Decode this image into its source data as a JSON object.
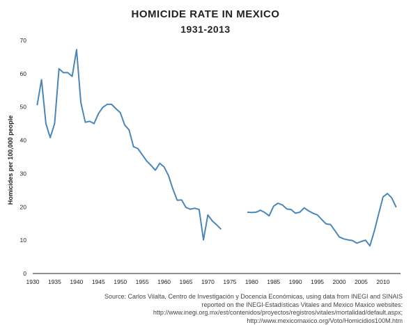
{
  "chart_data": {
    "type": "line",
    "title": "HOMICIDE RATE IN MEXICO",
    "subtitle": "1931-2013",
    "xlabel": "",
    "ylabel": "Homicides per 100,000 people",
    "xlim": [
      1930,
      2014
    ],
    "ylim": [
      0,
      70
    ],
    "x_ticks": [
      1930,
      1935,
      1940,
      1945,
      1950,
      1955,
      1960,
      1965,
      1970,
      1975,
      1980,
      1985,
      1990,
      1995,
      2000,
      2005,
      2010
    ],
    "y_ticks": [
      0,
      10,
      20,
      30,
      40,
      50,
      60,
      70
    ],
    "grid": false,
    "line_color": "#4a86b8",
    "series": [
      {
        "name": "",
        "segments": [
          {
            "x": [
              1931,
              1932,
              1933,
              1934,
              1935,
              1936,
              1937,
              1938,
              1939,
              1940,
              1941,
              1942,
              1943,
              1944,
              1945,
              1946,
              1947,
              1948,
              1949,
              1950,
              1951,
              1952,
              1953,
              1954,
              1955,
              1956,
              1957,
              1958,
              1959,
              1960,
              1961,
              1962,
              1963,
              1964,
              1965,
              1966,
              1967,
              1968,
              1969,
              1970,
              1971,
              1972,
              1973
            ],
            "y": [
              50.5,
              58.2,
              45.0,
              40.8,
              45.0,
              61.5,
              60.3,
              60.3,
              59.2,
              67.2,
              51.3,
              45.4,
              45.7,
              45.0,
              48.0,
              49.9,
              50.8,
              50.8,
              49.5,
              48.3,
              44.6,
              43.1,
              38.1,
              37.5,
              35.7,
              33.8,
              32.5,
              31.0,
              33.1,
              32.0,
              29.4,
              25.4,
              22.0,
              22.1,
              19.8,
              19.3,
              19.6,
              19.2,
              10.1,
              17.6,
              15.8,
              14.6,
              13.3
            ]
          },
          {
            "x": [
              1979,
              1980,
              1981,
              1982,
              1983,
              1984,
              1985,
              1986,
              1987,
              1988,
              1989,
              1990,
              1991,
              1992,
              1993,
              1994,
              1995,
              1996,
              1997,
              1998,
              1999,
              2000,
              2001,
              2002,
              2003,
              2004,
              2005,
              2006,
              2007,
              2008,
              2009,
              2010,
              2011,
              2012,
              2013
            ],
            "y": [
              18.4,
              18.3,
              18.4,
              19.0,
              18.3,
              17.3,
              20.2,
              21.1,
              20.6,
              19.4,
              19.2,
              18.1,
              18.4,
              19.7,
              18.8,
              18.1,
              17.6,
              16.2,
              14.9,
              14.7,
              12.9,
              11.0,
              10.4,
              10.1,
              9.9,
              9.1,
              9.6,
              10.0,
              8.3,
              12.7,
              17.9,
              23.0,
              24.0,
              22.7,
              19.9
            ]
          }
        ]
      }
    ],
    "source_lines": [
      "Source: Carlos Vilalta, Centro de Investigación y Docencia Económicas, using data from INEGI and SINAIS",
      "reported on the INEGI-Estadísticas Vitales and Mexico Maxico websites:",
      "http://www.inegi.org.mx/est/contenidos/proyectos/registros/vitales/mortalidad/default.aspx;",
      "http://www.mexicomaxico.org/Voto/Homicidios100M.htm"
    ]
  }
}
